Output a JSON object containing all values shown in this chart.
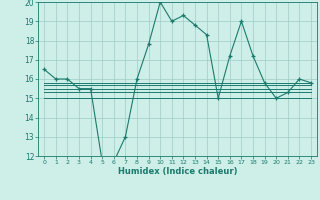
{
  "x": [
    0,
    1,
    2,
    3,
    4,
    5,
    6,
    7,
    8,
    9,
    10,
    11,
    12,
    13,
    14,
    15,
    16,
    17,
    18,
    19,
    20,
    21,
    22,
    23
  ],
  "line_main": [
    16.5,
    16.0,
    16.0,
    15.5,
    15.5,
    11.7,
    11.7,
    13.0,
    16.0,
    17.8,
    20.0,
    19.0,
    19.3,
    18.8,
    18.3,
    15.0,
    17.2,
    19.0,
    17.2,
    15.8,
    15.0,
    15.3,
    16.0,
    15.8
  ],
  "line_flat1": [
    15.5,
    15.5,
    15.5,
    15.5,
    15.5,
    15.5,
    15.5,
    15.5,
    15.5,
    15.5,
    15.5,
    15.5,
    15.5,
    15.5,
    15.5,
    15.5,
    15.5,
    15.5,
    15.5,
    15.5,
    15.5,
    15.5,
    15.5,
    15.5
  ],
  "line_flat2": [
    15.3,
    15.3,
    15.3,
    15.3,
    15.3,
    15.3,
    15.3,
    15.3,
    15.3,
    15.3,
    15.3,
    15.3,
    15.3,
    15.3,
    15.3,
    15.3,
    15.3,
    15.3,
    15.3,
    15.3,
    15.3,
    15.3,
    15.3,
    15.3
  ],
  "line_flat3": [
    15.7,
    15.7,
    15.7,
    15.7,
    15.7,
    15.7,
    15.7,
    15.7,
    15.7,
    15.7,
    15.7,
    15.7,
    15.7,
    15.7,
    15.7,
    15.7,
    15.7,
    15.7,
    15.7,
    15.7,
    15.7,
    15.7,
    15.7,
    15.7
  ],
  "line_flat4": [
    15.0,
    15.0,
    15.0,
    15.0,
    15.0,
    15.0,
    15.0,
    15.0,
    15.0,
    15.0,
    15.0,
    15.0,
    15.0,
    15.0,
    15.0,
    15.0,
    15.0,
    15.0,
    15.0,
    15.0,
    15.0,
    15.0,
    15.0,
    15.0
  ],
  "line_flat5": [
    15.8,
    15.8,
    15.8,
    15.8,
    15.8,
    15.8,
    15.8,
    15.8,
    15.8,
    15.8,
    15.8,
    15.8,
    15.8,
    15.8,
    15.8,
    15.8,
    15.8,
    15.8,
    15.8,
    15.8,
    15.8,
    15.8,
    15.8,
    15.8
  ],
  "color_main": "#1a7a6e",
  "color_flat": "#1a7a6e",
  "bg_color": "#ceeee8",
  "grid_color": "#a0ccc8",
  "xlabel": "Humidex (Indice chaleur)",
  "ylim": [
    12,
    20
  ],
  "yticks": [
    12,
    13,
    14,
    15,
    16,
    17,
    18,
    19,
    20
  ],
  "xlim": [
    -0.5,
    23.5
  ]
}
